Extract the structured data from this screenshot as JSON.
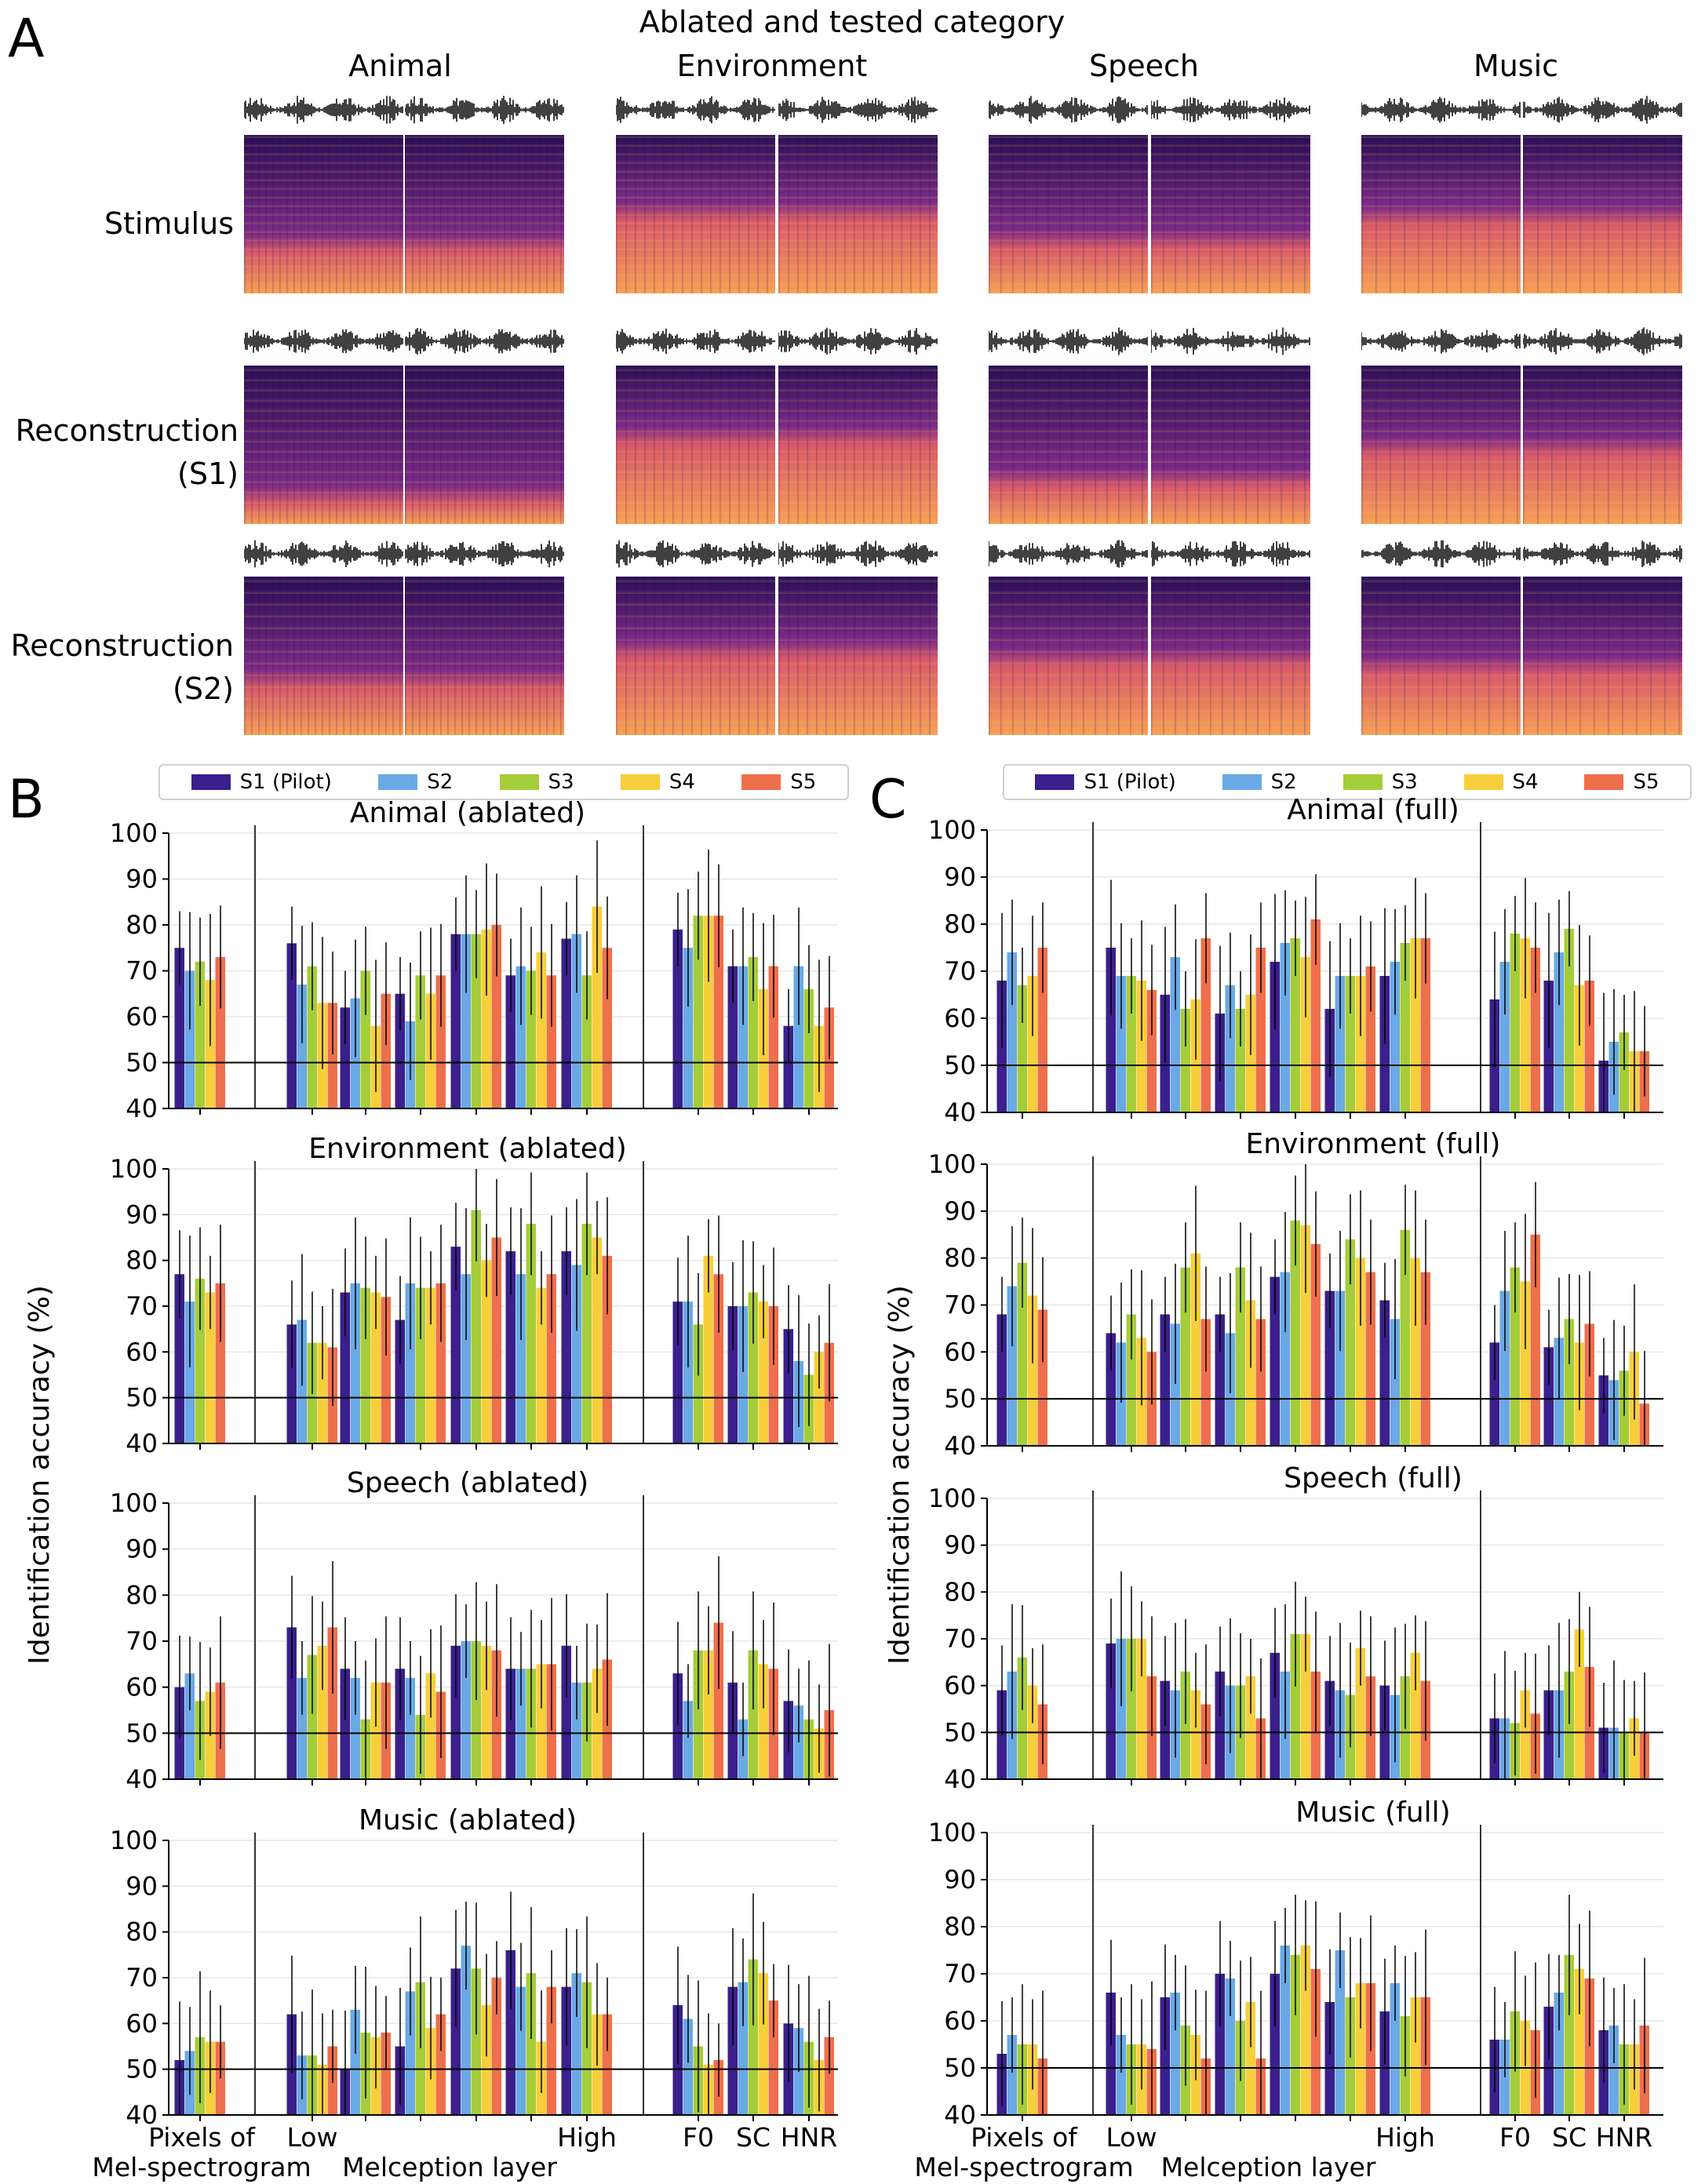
{
  "panel_letters": {
    "a": "A",
    "b": "B",
    "c": "C"
  },
  "panel_a": {
    "super_title": "Ablated and tested category",
    "columns": [
      "Animal",
      "Environment",
      "Speech",
      "Music"
    ],
    "rows": [
      {
        "line1": "Stimulus",
        "line2": ""
      },
      {
        "line1": "Reconstruction",
        "line2": "(S1)"
      },
      {
        "line1": "Reconstruction",
        "line2": "(S2)"
      }
    ]
  },
  "legend": {
    "entries": [
      "S1 (Pilot)",
      "S2",
      "S3",
      "S4",
      "S5"
    ],
    "colors": [
      "#3b1f8c",
      "#6aa9e6",
      "#a5cd3a",
      "#f7cf3a",
      "#ee6f4b"
    ]
  },
  "colors": {
    "spectrogram_light": "#f6a056",
    "spectrogram_dark": "#2a0f55",
    "chance_line": "#000000",
    "error_bar": "#000000"
  },
  "chart_data": {
    "type": "bar",
    "ylabel": "Identification accuracy (%)",
    "ylim": [
      40,
      100
    ],
    "yticks": [
      40,
      50,
      60,
      70,
      80,
      90,
      100
    ],
    "chance_level": 50,
    "series_names": [
      "S1 (Pilot)",
      "S2",
      "S3",
      "S4",
      "S5"
    ],
    "x_tick_labels": [
      "Pixels of\nMel-spectrogram",
      "Low",
      "High",
      "F0",
      "SC",
      "HNR"
    ],
    "x_group_label": "Melception layer",
    "groups": [
      "pixels",
      "layer1",
      "layer2",
      "layer3",
      "layer4",
      "layer5",
      "layer6",
      "F0",
      "SC",
      "HNR"
    ],
    "panels": [
      {
        "title": "Animal (ablated)",
        "values": [
          [
            75,
            70,
            72,
            68,
            73
          ],
          [
            76,
            67,
            71,
            63,
            63
          ],
          [
            62,
            64,
            70,
            58,
            65
          ],
          [
            65,
            59,
            69,
            65,
            69
          ],
          [
            78,
            78,
            78,
            79,
            80
          ],
          [
            69,
            71,
            70,
            74,
            69
          ],
          [
            77,
            78,
            69,
            84,
            75
          ],
          [
            79,
            75,
            82,
            82,
            82
          ],
          [
            71,
            71,
            73,
            66,
            71
          ],
          [
            58,
            71,
            66,
            58,
            62
          ]
        ]
      },
      {
        "title": "Environment (ablated)",
        "values": [
          [
            77,
            71,
            76,
            73,
            75
          ],
          [
            66,
            67,
            62,
            62,
            61
          ],
          [
            73,
            75,
            74,
            73,
            72
          ],
          [
            67,
            75,
            74,
            74,
            75
          ],
          [
            83,
            77,
            91,
            80,
            85
          ],
          [
            82,
            77,
            88,
            74,
            77
          ],
          [
            82,
            79,
            88,
            85,
            81
          ],
          [
            71,
            71,
            66,
            81,
            77
          ],
          [
            70,
            70,
            73,
            71,
            70
          ],
          [
            65,
            58,
            55,
            60,
            62
          ]
        ]
      },
      {
        "title": "Speech (ablated)",
        "values": [
          [
            60,
            63,
            57,
            59,
            61
          ],
          [
            73,
            62,
            67,
            69,
            73
          ],
          [
            64,
            62,
            53,
            61,
            61
          ],
          [
            64,
            62,
            54,
            63,
            59
          ],
          [
            69,
            70,
            70,
            69,
            68
          ],
          [
            64,
            64,
            64,
            65,
            65
          ],
          [
            69,
            61,
            61,
            64,
            66
          ],
          [
            63,
            57,
            68,
            68,
            74
          ],
          [
            61,
            53,
            68,
            65,
            64
          ],
          [
            57,
            56,
            53,
            51,
            55
          ]
        ]
      },
      {
        "title": "Music (ablated)",
        "values": [
          [
            52,
            54,
            57,
            56,
            56
          ],
          [
            62,
            53,
            53,
            51,
            55
          ],
          [
            50,
            63,
            58,
            57,
            58
          ],
          [
            55,
            67,
            69,
            59,
            62
          ],
          [
            72,
            77,
            72,
            64,
            70
          ],
          [
            76,
            68,
            71,
            56,
            68
          ],
          [
            68,
            71,
            69,
            62,
            62
          ],
          [
            64,
            61,
            55,
            51,
            52
          ],
          [
            68,
            69,
            74,
            71,
            65
          ],
          [
            60,
            59,
            56,
            52,
            57
          ]
        ]
      },
      {
        "title": "Animal (full)",
        "values": [
          [
            68,
            74,
            67,
            69,
            75
          ],
          [
            75,
            69,
            69,
            68,
            66
          ],
          [
            65,
            73,
            62,
            64,
            77
          ],
          [
            61,
            67,
            62,
            65,
            75
          ],
          [
            72,
            76,
            77,
            73,
            81
          ],
          [
            62,
            69,
            69,
            69,
            71
          ],
          [
            69,
            72,
            76,
            77,
            77
          ],
          [
            64,
            72,
            78,
            77,
            75
          ],
          [
            68,
            74,
            79,
            67,
            68
          ],
          [
            51,
            55,
            57,
            53,
            53
          ]
        ]
      },
      {
        "title": "Environment (full)",
        "values": [
          [
            68,
            74,
            79,
            72,
            69
          ],
          [
            64,
            62,
            68,
            63,
            60
          ],
          [
            68,
            66,
            78,
            81,
            67
          ],
          [
            68,
            64,
            78,
            71,
            67
          ],
          [
            76,
            77,
            88,
            87,
            83
          ],
          [
            73,
            73,
            84,
            80,
            77
          ],
          [
            71,
            67,
            86,
            80,
            77
          ],
          [
            62,
            73,
            78,
            75,
            85
          ],
          [
            61,
            63,
            67,
            62,
            66
          ],
          [
            55,
            54,
            56,
            60,
            49
          ]
        ]
      },
      {
        "title": "Speech (full)",
        "values": [
          [
            59,
            63,
            66,
            60,
            56
          ],
          [
            69,
            70,
            70,
            70,
            62
          ],
          [
            61,
            59,
            63,
            59,
            56
          ],
          [
            63,
            60,
            60,
            62,
            53
          ],
          [
            67,
            63,
            71,
            71,
            63
          ],
          [
            61,
            59,
            58,
            68,
            62
          ],
          [
            60,
            58,
            62,
            67,
            61
          ],
          [
            53,
            53,
            52,
            59,
            54
          ],
          [
            59,
            59,
            63,
            72,
            64
          ],
          [
            51,
            51,
            50,
            53,
            50
          ]
        ]
      },
      {
        "title": "Music (full)",
        "values": [
          [
            53,
            57,
            55,
            55,
            52
          ],
          [
            66,
            57,
            55,
            55,
            54
          ],
          [
            65,
            66,
            59,
            57,
            52
          ],
          [
            70,
            69,
            60,
            64,
            52
          ],
          [
            70,
            76,
            74,
            76,
            71
          ],
          [
            64,
            75,
            65,
            68,
            68
          ],
          [
            62,
            68,
            61,
            65,
            65
          ],
          [
            56,
            56,
            62,
            60,
            58
          ],
          [
            63,
            66,
            74,
            71,
            69
          ],
          [
            58,
            59,
            55,
            55,
            59
          ]
        ]
      }
    ]
  }
}
